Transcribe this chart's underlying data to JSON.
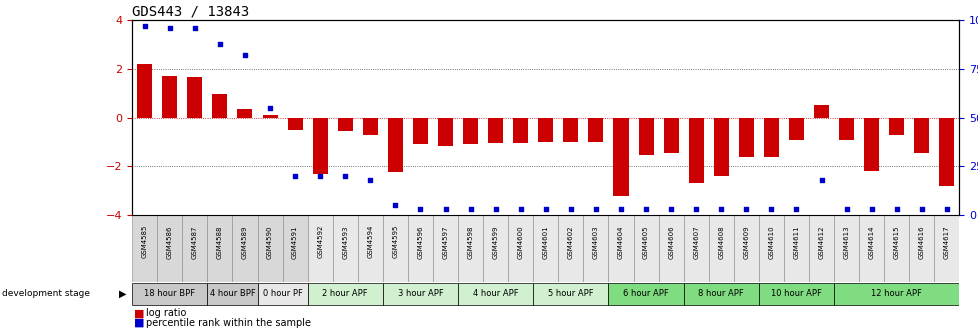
{
  "title": "GDS443 / 13843",
  "samples": [
    "GSM4585",
    "GSM4586",
    "GSM4587",
    "GSM4588",
    "GSM4589",
    "GSM4590",
    "GSM4591",
    "GSM4592",
    "GSM4593",
    "GSM4594",
    "GSM4595",
    "GSM4596",
    "GSM4597",
    "GSM4598",
    "GSM4599",
    "GSM4600",
    "GSM4601",
    "GSM4602",
    "GSM4603",
    "GSM4604",
    "GSM4605",
    "GSM4606",
    "GSM4607",
    "GSM4608",
    "GSM4609",
    "GSM4610",
    "GSM4611",
    "GSM4612",
    "GSM4613",
    "GSM4614",
    "GSM4615",
    "GSM4616",
    "GSM4617"
  ],
  "log_ratio": [
    2.2,
    1.7,
    1.65,
    0.95,
    0.35,
    0.1,
    -0.5,
    -2.3,
    -0.55,
    -0.7,
    -2.25,
    -1.1,
    -1.15,
    -1.1,
    -1.05,
    -1.05,
    -1.0,
    -1.0,
    -1.0,
    -3.2,
    -1.55,
    -1.45,
    -2.7,
    -2.4,
    -1.6,
    -1.6,
    -0.9,
    0.5,
    -0.9,
    -2.2,
    -0.7,
    -1.45,
    -2.8
  ],
  "percentile": [
    97,
    96,
    96,
    88,
    82,
    55,
    20,
    20,
    20,
    18,
    5,
    3,
    3,
    3,
    3,
    3,
    3,
    3,
    3,
    3,
    3,
    3,
    3,
    3,
    3,
    3,
    3,
    18,
    3,
    3,
    3,
    3,
    3
  ],
  "groups": [
    {
      "label": "18 hour BPF",
      "start": 0,
      "end": 2,
      "color": "#c8c8c8"
    },
    {
      "label": "4 hour BPF",
      "start": 3,
      "end": 4,
      "color": "#c8c8c8"
    },
    {
      "label": "0 hour PF",
      "start": 5,
      "end": 6,
      "color": "#e8e8e8"
    },
    {
      "label": "2 hour APF",
      "start": 7,
      "end": 9,
      "color": "#d0f0d0"
    },
    {
      "label": "3 hour APF",
      "start": 10,
      "end": 12,
      "color": "#d0f0d0"
    },
    {
      "label": "4 hour APF",
      "start": 13,
      "end": 15,
      "color": "#d0f0d0"
    },
    {
      "label": "5 hour APF",
      "start": 16,
      "end": 18,
      "color": "#d0f0d0"
    },
    {
      "label": "6 hour APF",
      "start": 19,
      "end": 21,
      "color": "#80dc80"
    },
    {
      "label": "8 hour APF",
      "start": 22,
      "end": 24,
      "color": "#80dc80"
    },
    {
      "label": "10 hour APF",
      "start": 25,
      "end": 27,
      "color": "#80dc80"
    },
    {
      "label": "12 hour APF",
      "start": 28,
      "end": 32,
      "color": "#80dc80"
    }
  ],
  "bar_color": "#cc0000",
  "dot_color": "#0000cc",
  "ylim": [
    -4,
    4
  ],
  "yticks": [
    -4,
    -2,
    0,
    2,
    4
  ],
  "y2ticks": [
    0,
    25,
    50,
    75,
    100
  ],
  "background_color": "#ffffff",
  "title_fontsize": 10,
  "legend_items": [
    "log ratio",
    "percentile rank within the sample"
  ]
}
